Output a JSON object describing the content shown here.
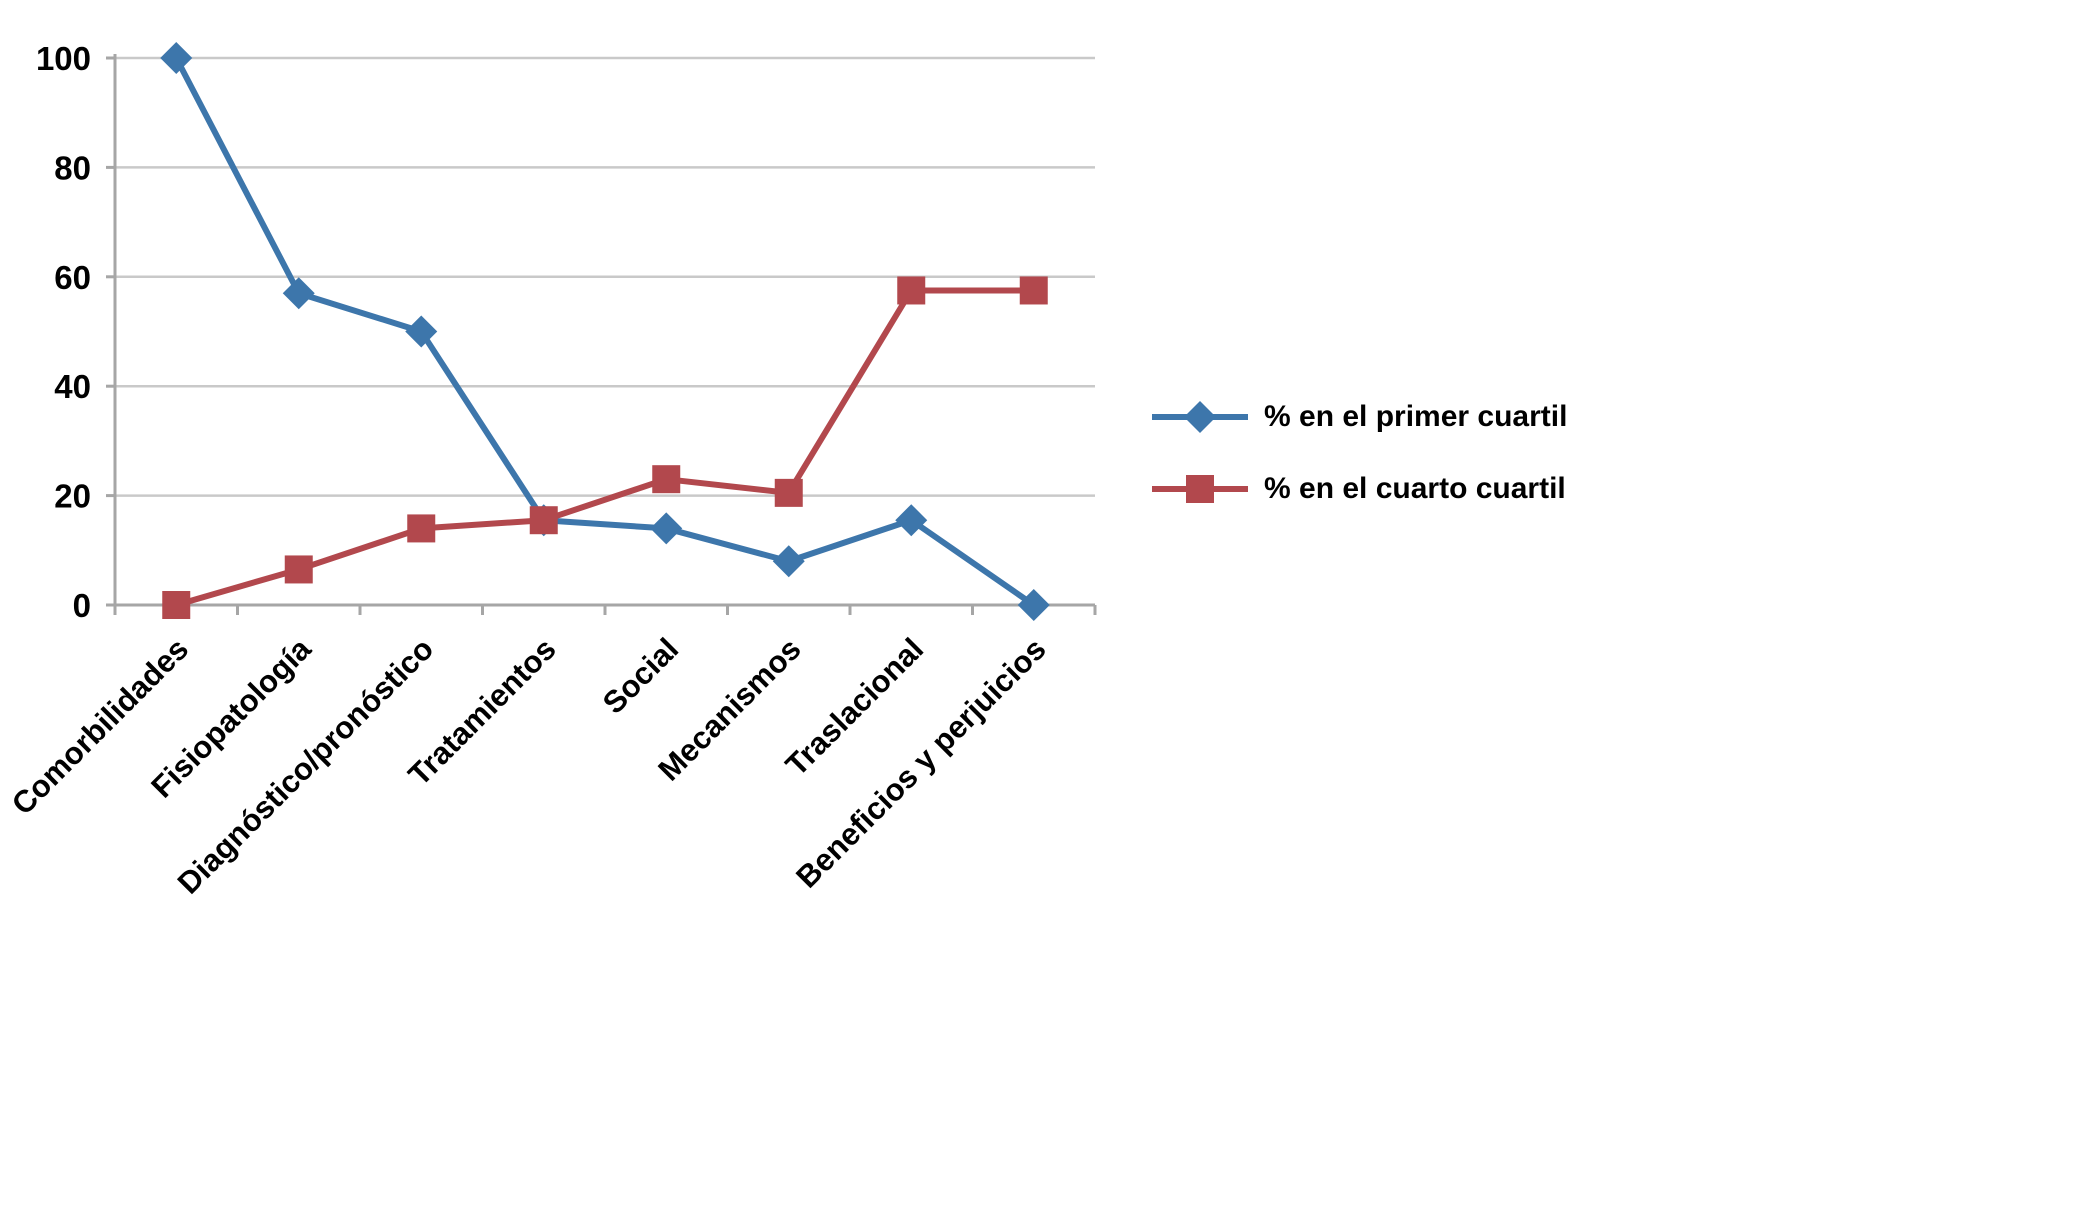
{
  "chart_data": {
    "type": "line",
    "categories": [
      "Comorbilidades",
      "Fisiopatología",
      "Diagnóstico/pronóstico",
      "Tratamientos",
      "Social",
      "Mecanismos",
      "Traslacional",
      "Beneficios y perjuicios"
    ],
    "series": [
      {
        "name": "% en el primer cuartil",
        "marker": "diamond",
        "color": "#3D76AB",
        "values": [
          100,
          57,
          50,
          15.5,
          14,
          8,
          15.5,
          0
        ]
      },
      {
        "name": "% en el cuarto cuartil",
        "marker": "square",
        "color": "#B2484D",
        "values": [
          0,
          6.5,
          14,
          15.5,
          23,
          20.5,
          57.5,
          57.5
        ]
      }
    ],
    "title": "",
    "xlabel": "",
    "ylabel": "",
    "ylim": [
      0,
      100
    ],
    "yticks": [
      0,
      20,
      40,
      60,
      80,
      100
    ],
    "grid": true,
    "legend_position": "right",
    "gridline_color": "#C9C9C9",
    "axis_color": "#A6A6A6",
    "label_color": "#000000"
  }
}
